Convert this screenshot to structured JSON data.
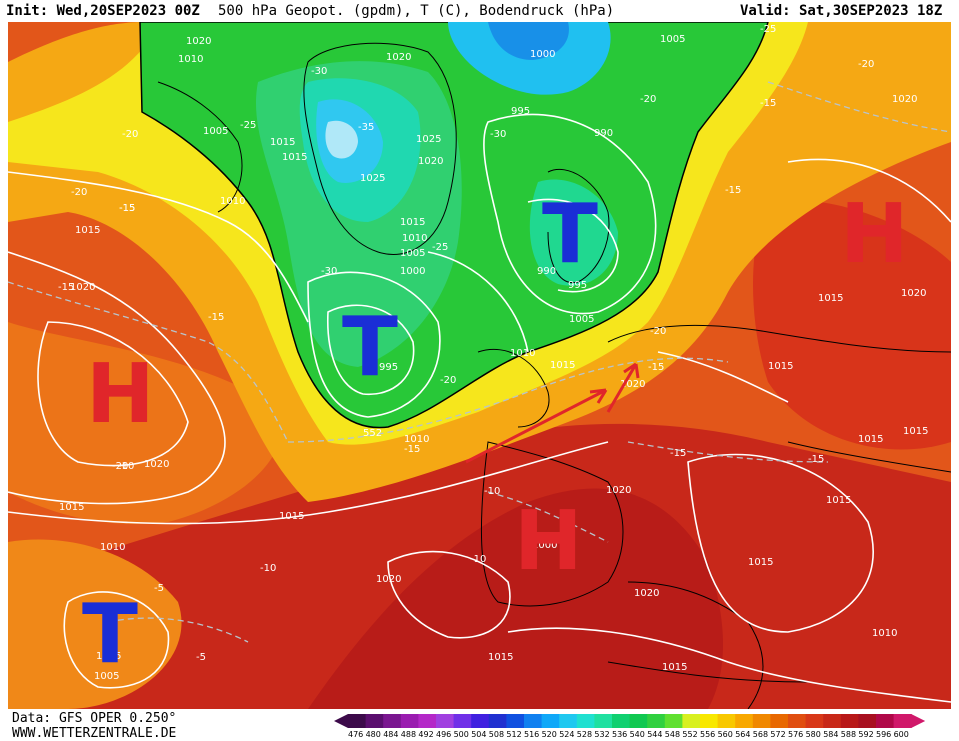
{
  "header": {
    "init": "Init: Wed,20SEP2023 00Z",
    "title": "500 hPa Geopot. (gpdm), T (C), Bodendruck (hPa)",
    "valid": "Valid: Sat,30SEP2023 18Z"
  },
  "footer": {
    "data_source": "Data: GFS OPER 0.250°",
    "website": "WWW.WETTERZENTRALE.DE"
  },
  "colorbar": {
    "labels": [
      "476",
      "480",
      "484",
      "488",
      "492",
      "496",
      "500",
      "504",
      "508",
      "512",
      "516",
      "520",
      "524",
      "528",
      "532",
      "536",
      "540",
      "544",
      "548",
      "552",
      "556",
      "560",
      "564",
      "568",
      "572",
      "576",
      "580",
      "584",
      "588",
      "592",
      "596",
      "600"
    ],
    "colors": [
      "#3c0a4a",
      "#5a0e6e",
      "#7a1690",
      "#9a1cb0",
      "#b428c8",
      "#a040e0",
      "#7030e8",
      "#4020e0",
      "#2030d0",
      "#1050e0",
      "#1080f0",
      "#10a8f8",
      "#20c8f0",
      "#20e0d0",
      "#20e0a0",
      "#10d070",
      "#10c850",
      "#30d040",
      "#60e030",
      "#d8f020",
      "#f8e800",
      "#f8c800",
      "#f8a800",
      "#f08800",
      "#e86800",
      "#e04e10",
      "#d83818",
      "#c82818",
      "#b81818",
      "#a81020",
      "#b00848",
      "#d0186a"
    ]
  },
  "pressure_systems": [
    {
      "letter": "T",
      "color": "#1a2ed6"
    },
    {
      "letter": "T",
      "color": "#1a2ed6"
    },
    {
      "letter": "T",
      "color": "#1a2ed6"
    },
    {
      "letter": "H",
      "color": "#e0262a"
    },
    {
      "letter": "H",
      "color": "#e0262a"
    },
    {
      "letter": "H",
      "color": "#e0262a"
    }
  ],
  "isobar_labels": [
    "1020",
    "1010",
    "1005",
    "1015",
    "1015",
    "1020",
    "1025",
    "1020",
    "1025",
    "1015",
    "1010",
    "1005",
    "1000",
    "995",
    "1000",
    "995",
    "990",
    "1005",
    "990",
    "995",
    "1010",
    "1015",
    "1005",
    "1010",
    "1015",
    "1020",
    "1020",
    "1015",
    "1020",
    "1015",
    "1015",
    "1015",
    "1015",
    "1015",
    "1015",
    "1020",
    "1020",
    "1015",
    "1020",
    "1010",
    "1020",
    "1010",
    "1005",
    "1015",
    "1015",
    "1010",
    "1020",
    "1000",
    "1005"
  ],
  "temperature_labels": [
    "-25",
    "-30",
    "-35",
    "-30",
    "-20",
    "-20",
    "-20",
    "-15",
    "-20",
    "-15",
    "-30",
    "-25",
    "-15",
    "-20",
    "-15",
    "-15",
    "-25",
    "-20",
    "-15",
    "-20",
    "-15",
    "-15",
    "-10",
    "-10",
    "-10",
    "-10",
    "-5",
    "-5",
    "-15",
    "-15"
  ],
  "contour_552_label": "552",
  "highlight_arrows": [
    {
      "color": "#e0262a"
    },
    {
      "color": "#e0262a"
    }
  ]
}
